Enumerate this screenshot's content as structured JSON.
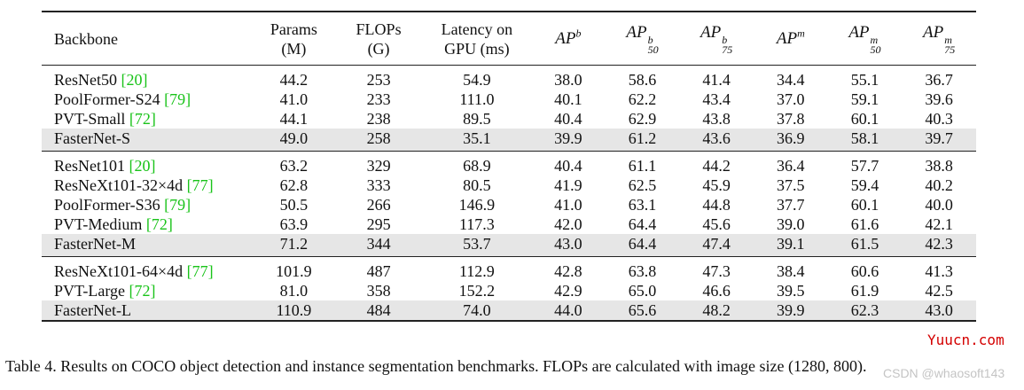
{
  "table": {
    "headers": {
      "backbone": "Backbone",
      "params_line1": "Params",
      "params_line2": "(M)",
      "flops_line1": "FLOPs",
      "flops_line2": "(G)",
      "latency_line1": "Latency on",
      "latency_line2": "GPU (ms)",
      "ap": [
        {
          "base": "AP",
          "sup": "b",
          "sub": ""
        },
        {
          "base": "AP",
          "sup": "b",
          "sub": "50"
        },
        {
          "base": "AP",
          "sup": "b",
          "sub": "75"
        },
        {
          "base": "AP",
          "sup": "m",
          "sub": ""
        },
        {
          "base": "AP",
          "sup": "m",
          "sub": "50"
        },
        {
          "base": "AP",
          "sup": "m",
          "sub": "75"
        }
      ]
    },
    "groups": [
      {
        "rows": [
          {
            "name": "ResNet50",
            "cite": "[20]",
            "values": [
              "44.2",
              "253",
              "54.9",
              "38.0",
              "58.6",
              "41.4",
              "34.4",
              "55.1",
              "36.7"
            ],
            "highlight": false
          },
          {
            "name": "PoolFormer-S24",
            "cite": "[79]",
            "values": [
              "41.0",
              "233",
              "111.0",
              "40.1",
              "62.2",
              "43.4",
              "37.0",
              "59.1",
              "39.6"
            ],
            "highlight": false
          },
          {
            "name": "PVT-Small",
            "cite": "[72]",
            "values": [
              "44.1",
              "238",
              "89.5",
              "40.4",
              "62.9",
              "43.8",
              "37.8",
              "60.1",
              "40.3"
            ],
            "highlight": false
          },
          {
            "name": "FasterNet-S",
            "cite": "",
            "values": [
              "49.0",
              "258",
              "35.1",
              "39.9",
              "61.2",
              "43.6",
              "36.9",
              "58.1",
              "39.7"
            ],
            "highlight": true
          }
        ]
      },
      {
        "rows": [
          {
            "name": "ResNet101",
            "cite": "[20]",
            "values": [
              "63.2",
              "329",
              "68.9",
              "40.4",
              "61.1",
              "44.2",
              "36.4",
              "57.7",
              "38.8"
            ],
            "highlight": false
          },
          {
            "name": "ResNeXt101-32×4d",
            "cite": "[77]",
            "values": [
              "62.8",
              "333",
              "80.5",
              "41.9",
              "62.5",
              "45.9",
              "37.5",
              "59.4",
              "40.2"
            ],
            "highlight": false
          },
          {
            "name": "PoolFormer-S36",
            "cite": "[79]",
            "values": [
              "50.5",
              "266",
              "146.9",
              "41.0",
              "63.1",
              "44.8",
              "37.7",
              "60.1",
              "40.0"
            ],
            "highlight": false
          },
          {
            "name": "PVT-Medium",
            "cite": "[72]",
            "values": [
              "63.9",
              "295",
              "117.3",
              "42.0",
              "64.4",
              "45.6",
              "39.0",
              "61.6",
              "42.1"
            ],
            "highlight": false
          },
          {
            "name": "FasterNet-M",
            "cite": "",
            "values": [
              "71.2",
              "344",
              "53.7",
              "43.0",
              "64.4",
              "47.4",
              "39.1",
              "61.5",
              "42.3"
            ],
            "highlight": true
          }
        ]
      },
      {
        "rows": [
          {
            "name": "ResNeXt101-64×4d",
            "cite": "[77]",
            "values": [
              "101.9",
              "487",
              "112.9",
              "42.8",
              "63.8",
              "47.3",
              "38.4",
              "60.6",
              "41.3"
            ],
            "highlight": false
          },
          {
            "name": "PVT-Large",
            "cite": "[72]",
            "values": [
              "81.0",
              "358",
              "152.2",
              "42.9",
              "65.0",
              "46.6",
              "39.5",
              "61.9",
              "42.5"
            ],
            "highlight": false
          },
          {
            "name": "FasterNet-L",
            "cite": "",
            "values": [
              "110.9",
              "484",
              "74.0",
              "44.0",
              "65.6",
              "48.2",
              "39.9",
              "62.3",
              "43.0"
            ],
            "highlight": true
          }
        ]
      }
    ]
  },
  "caption": "Table 4. Results on COCO object detection and instance segmentation benchmarks. FLOPs are calculated with image size (1280, 800).",
  "watermarks": {
    "site": "Yuucn.com",
    "author": "CSDN @whaosoft143"
  },
  "colors": {
    "citation": "#19c319",
    "highlight_row": "#e6e6e6",
    "watermark_site": "#d40000"
  }
}
